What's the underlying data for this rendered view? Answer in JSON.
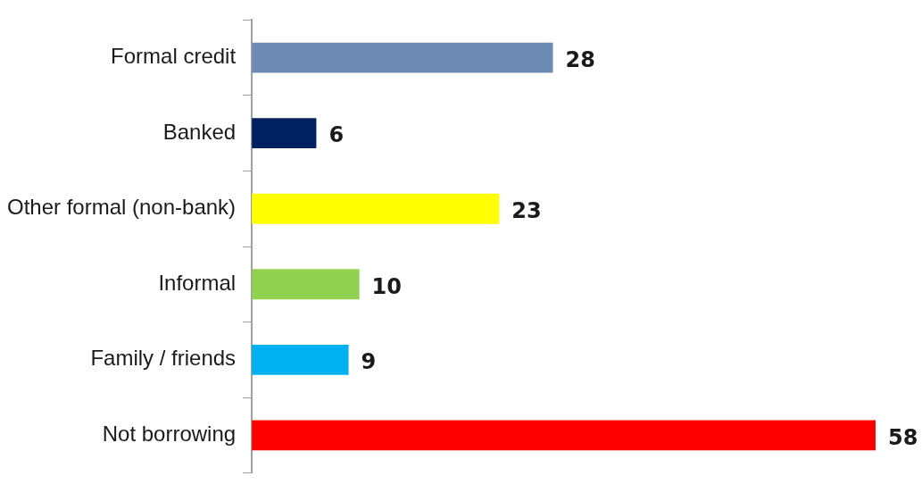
{
  "chart_data": {
    "type": "bar",
    "orientation": "horizontal",
    "categories": [
      "Formal credit",
      "Banked",
      "Other formal (non-bank)",
      "Informal",
      "Family / friends",
      "Not borrowing"
    ],
    "values": [
      28,
      6,
      23,
      10,
      9,
      58
    ],
    "colors": [
      "#6d8ab4",
      "#002060",
      "#ffff00",
      "#92d050",
      "#00b0f0",
      "#ff0000"
    ],
    "data_labels": true
  }
}
